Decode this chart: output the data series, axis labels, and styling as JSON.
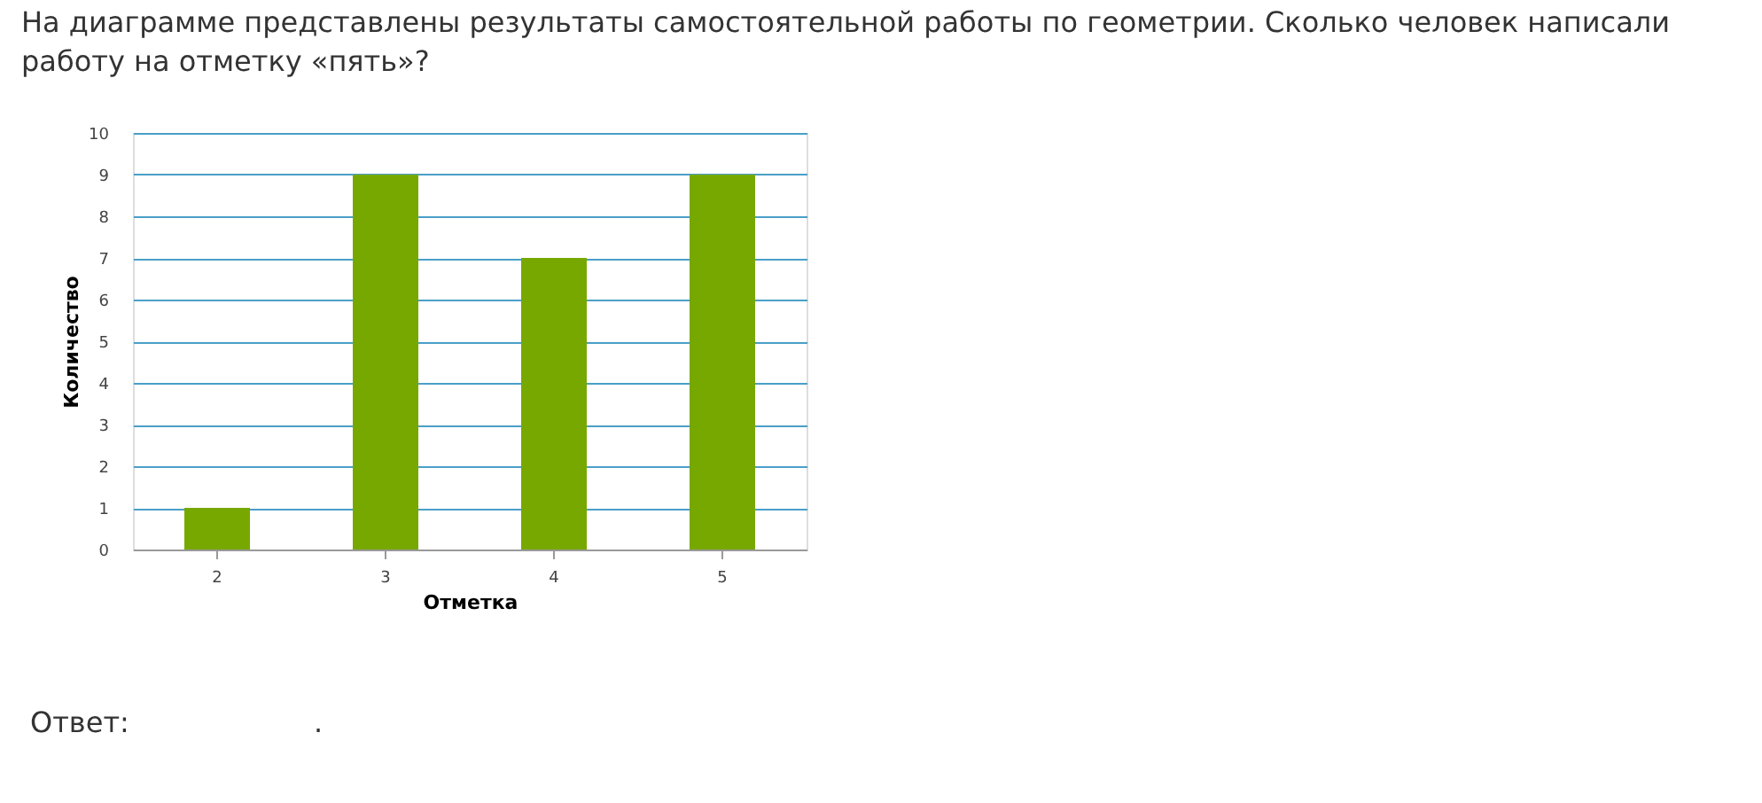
{
  "chart_data": {
    "type": "bar",
    "title": "На диаграмме представлены результаты самостоятельной работы по геометрии. Сколько человек написали работу на отметку «пять»?",
    "xlabel": "Отметка",
    "ylabel": "Количество",
    "categories": [
      "2",
      "3",
      "4",
      "5"
    ],
    "values": [
      1,
      9,
      7,
      9
    ],
    "color": "#77a800",
    "ylim": [
      0,
      10
    ],
    "yticks": [
      0,
      1,
      2,
      3,
      4,
      5,
      6,
      7,
      8,
      9,
      10
    ],
    "grid": "y",
    "annotations": [
      "Ответ:",
      "."
    ]
  }
}
